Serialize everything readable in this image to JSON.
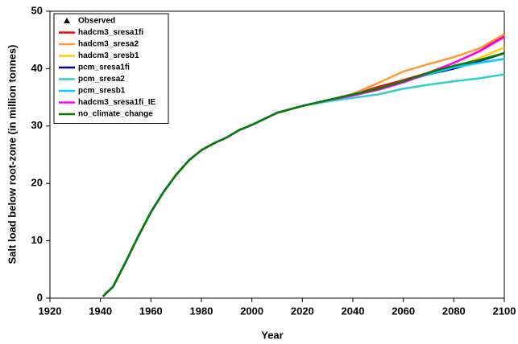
{
  "chart_data": {
    "type": "line",
    "x_label": "Year",
    "y_label": "Salt load below root-zone (in million tonnes)",
    "x": [
      1941,
      1945,
      1950,
      1955,
      1960,
      1965,
      1970,
      1975,
      1980,
      1985,
      1990,
      1995,
      2000,
      2010,
      2020,
      2030,
      2040,
      2050,
      2060,
      2070,
      2080,
      2090,
      2100
    ],
    "xlim": [
      1920,
      2100
    ],
    "xticks": [
      1920,
      1940,
      1960,
      1980,
      2000,
      2020,
      2040,
      2060,
      2080,
      2100
    ],
    "ylim": [
      0,
      50
    ],
    "yticks": [
      0,
      10,
      20,
      30,
      40,
      50
    ],
    "grid": false,
    "legend": "upper left",
    "series": [
      {
        "name": "Observed",
        "color": "#000000",
        "marker": "triangle",
        "values": [
          null,
          null,
          null,
          null,
          null,
          null,
          null,
          null,
          null,
          null,
          null,
          null,
          null,
          null,
          null,
          null,
          null,
          null,
          null,
          null,
          null,
          null,
          null
        ]
      },
      {
        "name": "hadcm3_sresa1fi",
        "color": "#ff0000",
        "values": [
          0.3,
          2,
          6.3,
          10.8,
          15,
          18.5,
          21.5,
          24,
          25.8,
          27,
          28,
          29.3,
          30.2,
          32.3,
          33.5,
          34.5,
          35.5,
          36.8,
          38,
          39.3,
          41,
          43,
          45.8
        ]
      },
      {
        "name": "hadcm3_sresa2",
        "color": "#ff9933",
        "values": [
          0.3,
          2,
          6.3,
          10.8,
          15,
          18.5,
          21.5,
          24,
          25.8,
          27,
          28,
          29.3,
          30.2,
          32.3,
          33.5,
          34.5,
          35.6,
          37.5,
          39.5,
          40.8,
          42,
          43.5,
          46
        ]
      },
      {
        "name": "hadcm3_sresb1",
        "color": "#ffcc00",
        "values": [
          0.3,
          2,
          6.3,
          10.8,
          15,
          18.5,
          21.5,
          24,
          25.8,
          27,
          28,
          29.3,
          30.2,
          32.3,
          33.5,
          34.5,
          35.5,
          36.5,
          37.8,
          39,
          40.2,
          41.8,
          43.7
        ]
      },
      {
        "name": "pcm_sresa1fi",
        "color": "#000099",
        "values": [
          0.3,
          2,
          6.3,
          10.8,
          15,
          18.5,
          21.5,
          24,
          25.8,
          27,
          28,
          29.3,
          30.2,
          32.3,
          33.5,
          34.5,
          35.5,
          36.5,
          37.8,
          39,
          40,
          41.3,
          42.7
        ]
      },
      {
        "name": "pcm_sresa2",
        "color": "#33cccc",
        "values": [
          0.3,
          2,
          6.3,
          10.8,
          15,
          18.5,
          21.5,
          24,
          25.8,
          27,
          28,
          29.3,
          30.2,
          32.3,
          33.5,
          34.3,
          34.9,
          35.5,
          36.5,
          37.2,
          37.8,
          38.3,
          39
        ]
      },
      {
        "name": "pcm_sresb1",
        "color": "#00ccff",
        "values": [
          0.3,
          2,
          6.3,
          10.8,
          15,
          18.5,
          21.5,
          24,
          25.8,
          27,
          28,
          29.3,
          30.2,
          32.3,
          33.5,
          34.5,
          35.5,
          36.5,
          37.8,
          39,
          40.2,
          41,
          41.7
        ]
      },
      {
        "name": "hadcm3_sresa1fi_IE",
        "color": "#ff00ff",
        "values": [
          0.3,
          2,
          6.3,
          10.8,
          15,
          18.5,
          21.5,
          24,
          25.8,
          27,
          28,
          29.3,
          30.2,
          32.3,
          33.5,
          34.5,
          35.3,
          36.3,
          37.6,
          39.2,
          41,
          43,
          45.5
        ]
      },
      {
        "name": "no_climate_change",
        "color": "#008000",
        "values": [
          0.3,
          2,
          6.3,
          10.8,
          15,
          18.5,
          21.5,
          24,
          25.8,
          27,
          28,
          29.3,
          30.2,
          32.3,
          33.5,
          34.5,
          35.5,
          36.5,
          37.8,
          39.3,
          40.5,
          41.5,
          42.7
        ]
      }
    ]
  }
}
